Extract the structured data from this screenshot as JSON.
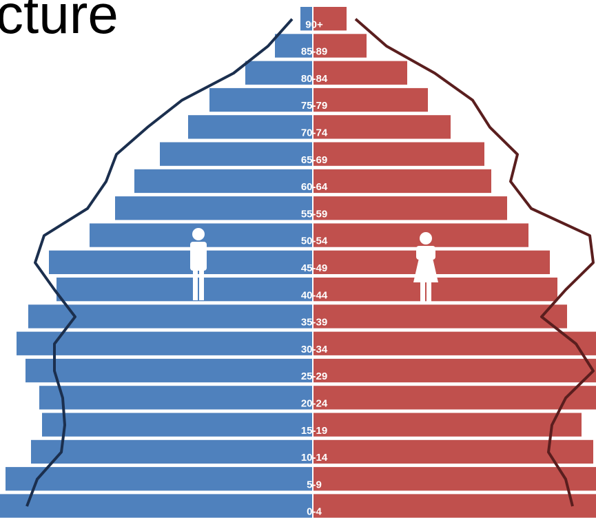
{
  "chart_data": {
    "type": "pyramid",
    "title": "cture",
    "categories": [
      "0-4",
      "5-9",
      "10-14",
      "15-19",
      "20-24",
      "25-29",
      "30-34",
      "35-39",
      "40-44",
      "45-49",
      "50-54",
      "55-59",
      "60-64",
      "65-69",
      "70-74",
      "75-79",
      "80-84",
      "85-89",
      "90+"
    ],
    "series": [
      {
        "side": "left",
        "color": "#4f81bd",
        "values": [
          460,
          445,
          408,
          392,
          396,
          416,
          429,
          412,
          371,
          382,
          323,
          286,
          258,
          221,
          180,
          149,
          97,
          54,
          17
        ]
      },
      {
        "side": "right",
        "color": "#c0504d",
        "values": [
          430,
          420,
          406,
          389,
          415,
          420,
          420,
          368,
          354,
          343,
          312,
          281,
          258,
          248,
          199,
          166,
          136,
          77,
          48
        ]
      }
    ],
    "lines": [
      {
        "side": "left",
        "color": "#1b2f4e",
        "values": [
          414,
          399,
          364,
          359,
          362,
          374,
          374,
          344,
          374,
          402,
          389,
          326,
          299,
          284,
          239,
          189,
          114,
          64,
          29
        ]
      },
      {
        "side": "right",
        "color": "#5a1e1e",
        "values": [
          376,
          366,
          341,
          346,
          366,
          406,
          381,
          331,
          366,
          406,
          401,
          316,
          286,
          296,
          256,
          231,
          176,
          106,
          61
        ]
      }
    ]
  }
}
